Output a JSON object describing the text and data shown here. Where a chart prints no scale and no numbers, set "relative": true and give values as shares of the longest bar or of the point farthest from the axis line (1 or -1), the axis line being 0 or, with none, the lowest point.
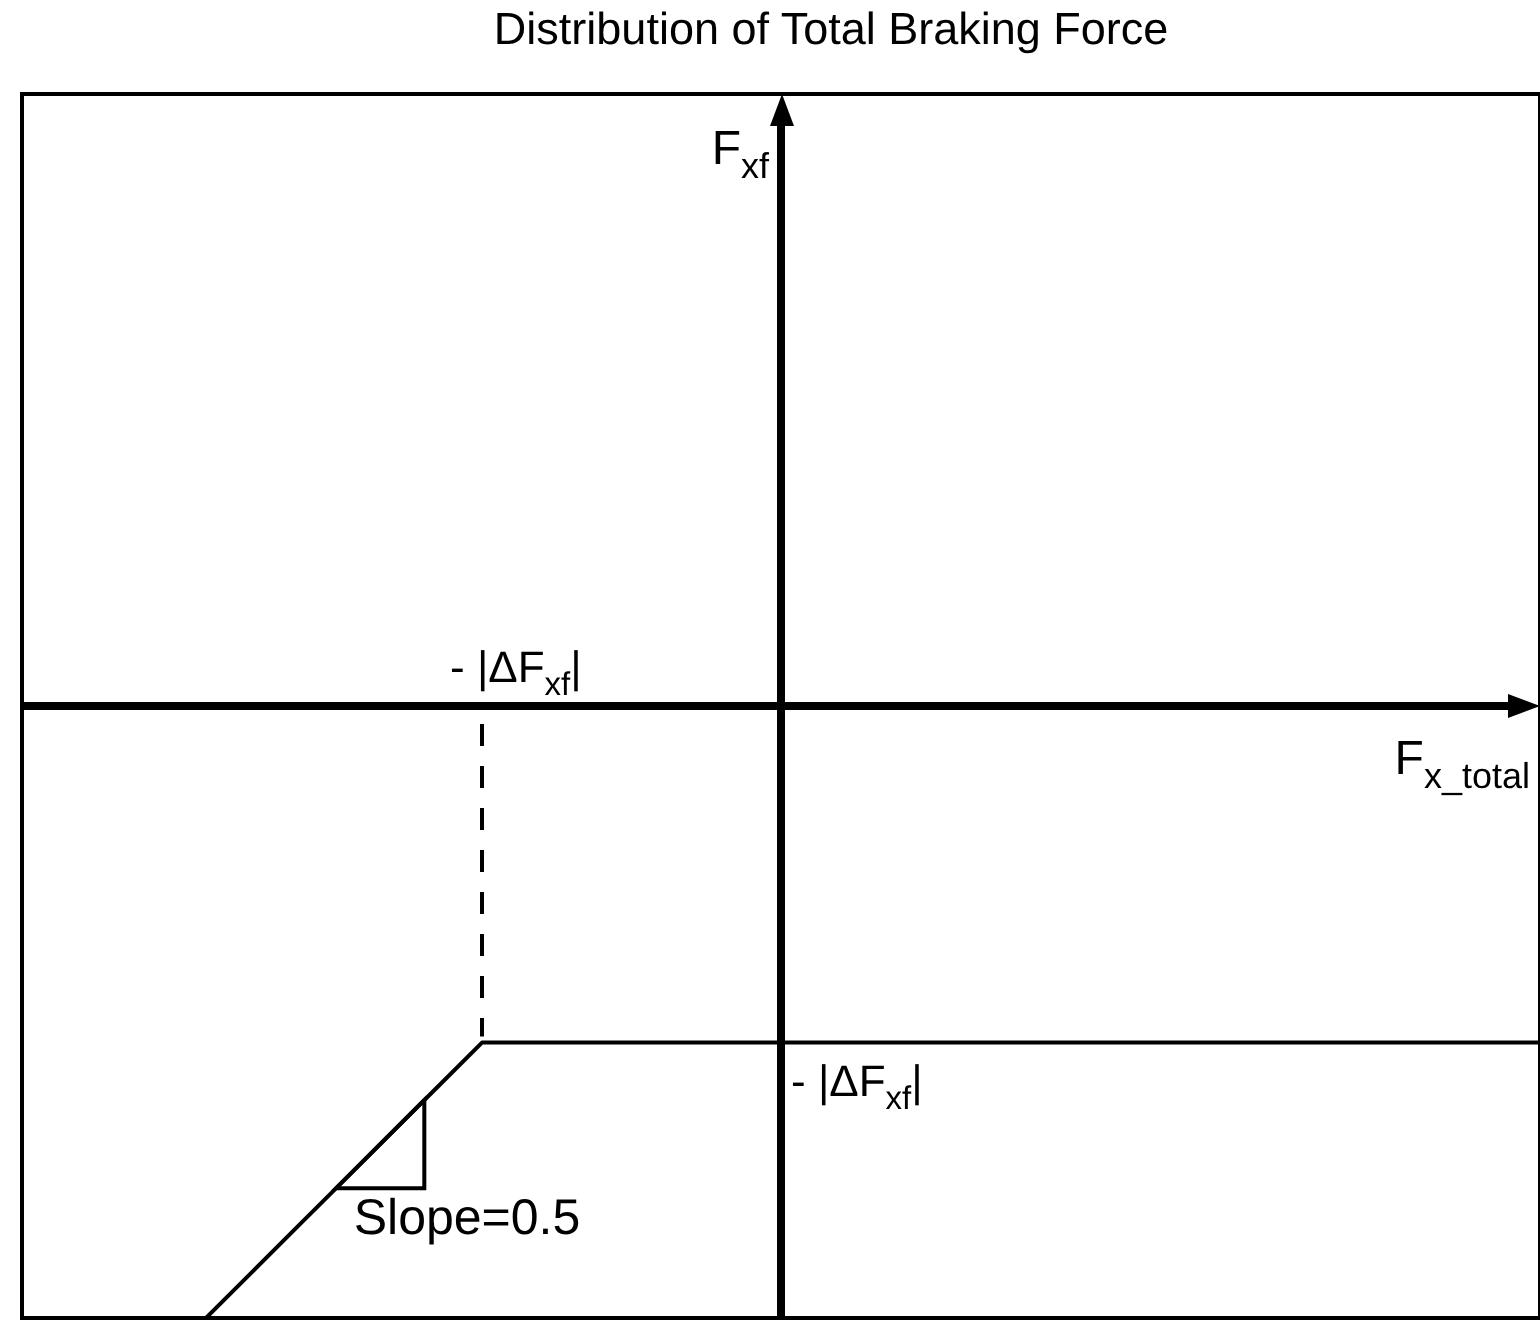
{
  "chart_data": {
    "type": "line",
    "title": "Distribution of Total Braking Force",
    "xlabel": "F$_{x_total}$",
    "relative": true,
    "categories": [
      null,
      null,
      null,
      null,
      null,
      null,
      null,
      null,
      null,
      null,
      null,
      null,
      null,
      null,
      null,
      null,
      null,
      null,
      null,
      null,
      null,
      null,
      null,
      null,
      null,
      null,
      null,
      null,
      null,
      null,
      null,
      null,
      null,
      null
    ],
    "series": [
      {
        "color": "#000000",
        "values": [
          null,
          null,
          null,
          null,
          -1,
          -0.925,
          -0.85,
          -0.775,
          -0.7,
          -0.625,
          -0.55,
          -0.55,
          -0.55,
          -0.55,
          -0.55,
          -0.55,
          -0.55,
          -0.55,
          -0.55,
          -0.55,
          -0.55,
          -0.55,
          -0.55,
          -0.55,
          -0.55,
          -0.55,
          -0.55,
          -0.55,
          -0.55,
          -0.55,
          -0.55,
          -0.55,
          -0.55,
          -0.55
        ]
      }
    ],
    "annotations": [
      "F$_{xf}$",
      "- |ΔF$_{xf}$|",
      {
        "text": "- |ΔF$_{xf}$|",
        "y": -0.55
      },
      "Slope=0.5"
    ]
  }
}
